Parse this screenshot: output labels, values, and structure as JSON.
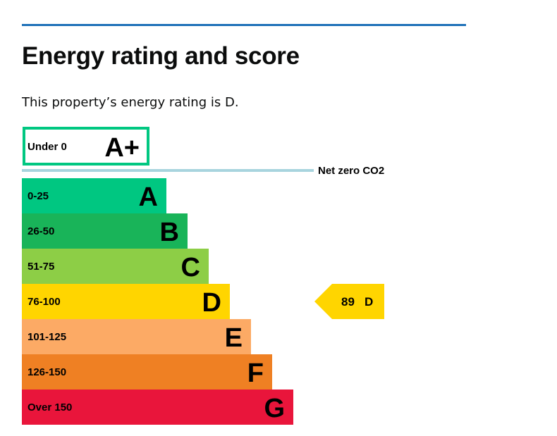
{
  "heading": "Energy rating and score",
  "intro": "This property’s energy rating is D.",
  "colors": {
    "rule": "#1d70b8",
    "net_zero_line": "#a8d4de",
    "aplus_border": "#00c781"
  },
  "chart_data": {
    "type": "bar",
    "title": "",
    "aplus": {
      "range": "Under 0",
      "letter": "A+"
    },
    "net_zero_label": "Net zero CO2",
    "bands": [
      {
        "range": "0-25",
        "letter": "A",
        "color": "#00c781"
      },
      {
        "range": "26-50",
        "letter": "B",
        "color": "#19b459"
      },
      {
        "range": "51-75",
        "letter": "C",
        "color": "#8dce46"
      },
      {
        "range": "76-100",
        "letter": "D",
        "color": "#ffd500"
      },
      {
        "range": "101-125",
        "letter": "E",
        "color": "#fcaa65"
      },
      {
        "range": "126-150",
        "letter": "F",
        "color": "#ef8023"
      },
      {
        "range": "Over 150",
        "letter": "G",
        "color": "#e9153b"
      }
    ],
    "current": {
      "score": 89,
      "letter": "D",
      "band_index": 3,
      "label": "89  D",
      "color": "#ffd500"
    }
  }
}
